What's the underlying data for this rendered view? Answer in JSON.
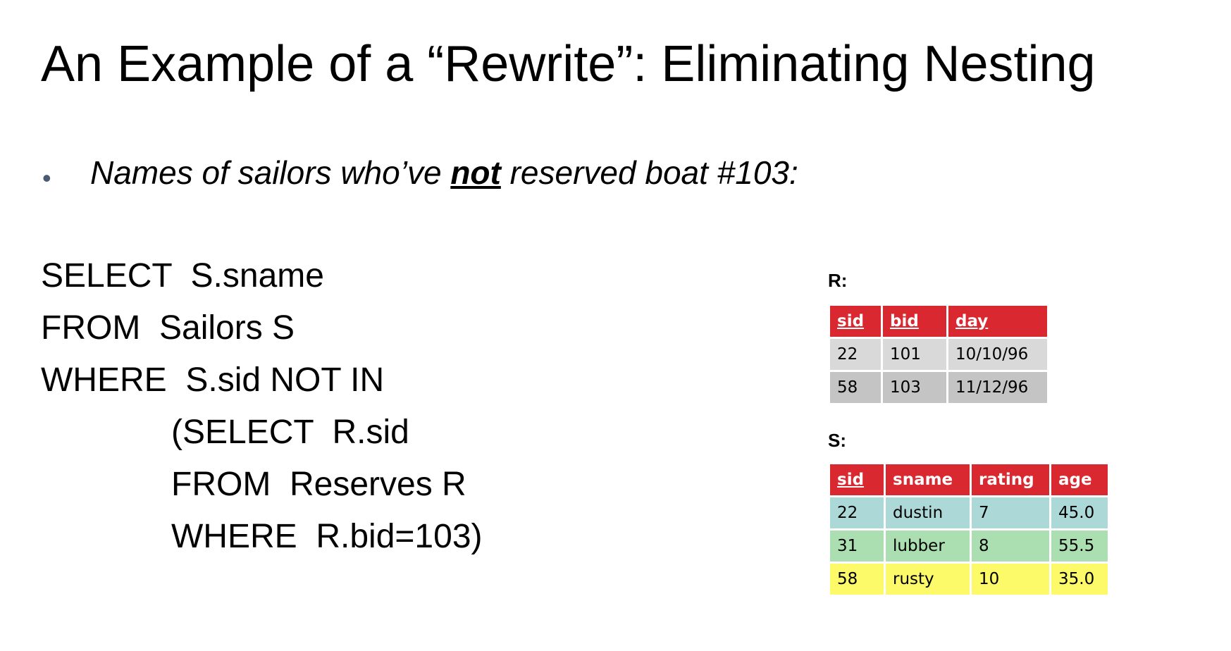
{
  "slide": {
    "title": "An Example of a “Rewrite”: Eliminating Nesting",
    "bullet": {
      "symbol": "•",
      "before": "Names of sailors who’ve ",
      "emphasis": "not",
      "after": " reserved boat #103:"
    },
    "sql": [
      "SELECT  S.sname",
      "FROM  Sailors S",
      "WHERE  S.sid NOT IN",
      "(SELECT  R.sid",
      "FROM  Reserves R",
      "WHERE  R.bid=103)"
    ]
  },
  "reserves": {
    "label": "R:",
    "headers": [
      "sid",
      "bid",
      "day"
    ],
    "rows": [
      [
        "22",
        "101",
        "10/10/96"
      ],
      [
        "58",
        "103",
        "11/12/96"
      ]
    ]
  },
  "sailors": {
    "label": "S:",
    "headers": [
      "sid",
      "sname",
      "rating",
      "age"
    ],
    "rows": [
      [
        "22",
        "dustin",
        "7",
        "45.0"
      ],
      [
        "31",
        "lubber",
        "8",
        "55.5"
      ],
      [
        "58",
        "rusty",
        "10",
        "35.0"
      ]
    ]
  },
  "colors": {
    "header_red": "#d9282f",
    "r_row_light": "#d9d9d9",
    "r_row_dark": "#c4c4c4",
    "s_row_teal": "#acd9d8",
    "s_row_green": "#abdfb1",
    "s_row_yellow": "#fdfa6a"
  }
}
